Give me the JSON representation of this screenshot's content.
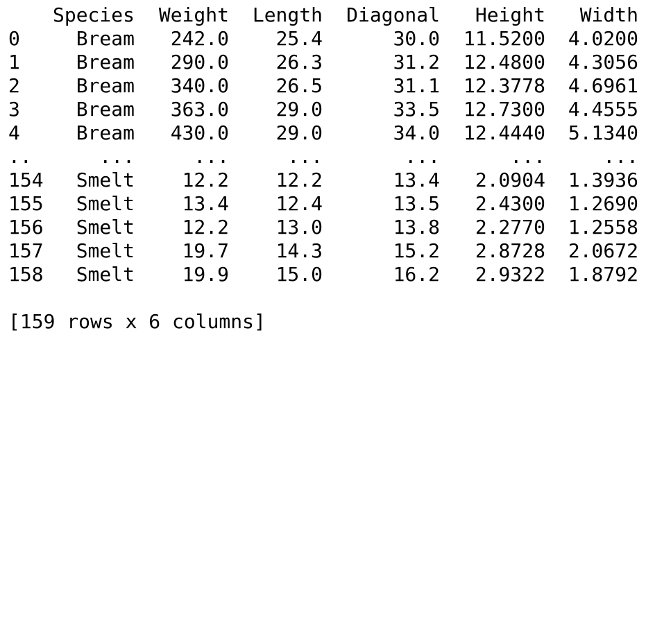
{
  "dataframe": {
    "columns": [
      "Species",
      "Weight",
      "Length",
      "Diagonal",
      "Height",
      "Width"
    ],
    "rows": [
      {
        "index": "0",
        "species": "Bream",
        "weight": "242.0",
        "length": "25.4",
        "diagonal": "30.0",
        "height": "11.5200",
        "width": "4.0200"
      },
      {
        "index": "1",
        "species": "Bream",
        "weight": "290.0",
        "length": "26.3",
        "diagonal": "31.2",
        "height": "12.4800",
        "width": "4.3056"
      },
      {
        "index": "2",
        "species": "Bream",
        "weight": "340.0",
        "length": "26.5",
        "diagonal": "31.1",
        "height": "12.3778",
        "width": "4.6961"
      },
      {
        "index": "3",
        "species": "Bream",
        "weight": "363.0",
        "length": "29.0",
        "diagonal": "33.5",
        "height": "12.7300",
        "width": "4.4555"
      },
      {
        "index": "4",
        "species": "Bream",
        "weight": "430.0",
        "length": "29.0",
        "diagonal": "34.0",
        "height": "12.4440",
        "width": "5.1340"
      },
      {
        "index": "..",
        "species": "...",
        "weight": "...",
        "length": "...",
        "diagonal": "...",
        "height": "...",
        "width": "..."
      },
      {
        "index": "154",
        "species": "Smelt",
        "weight": "12.2",
        "length": "12.2",
        "diagonal": "13.4",
        "height": "2.0904",
        "width": "1.3936"
      },
      {
        "index": "155",
        "species": "Smelt",
        "weight": "13.4",
        "length": "12.4",
        "diagonal": "13.5",
        "height": "2.4300",
        "width": "1.2690"
      },
      {
        "index": "156",
        "species": "Smelt",
        "weight": "12.2",
        "length": "13.0",
        "diagonal": "13.8",
        "height": "2.2770",
        "width": "1.2558"
      },
      {
        "index": "157",
        "species": "Smelt",
        "weight": "19.7",
        "length": "14.3",
        "diagonal": "15.2",
        "height": "2.8728",
        "width": "2.0672"
      },
      {
        "index": "158",
        "species": "Smelt",
        "weight": "19.9",
        "length": "15.0",
        "diagonal": "16.2",
        "height": "2.9322",
        "width": "1.8792"
      }
    ],
    "summary": "[159 rows x 6 columns]"
  }
}
